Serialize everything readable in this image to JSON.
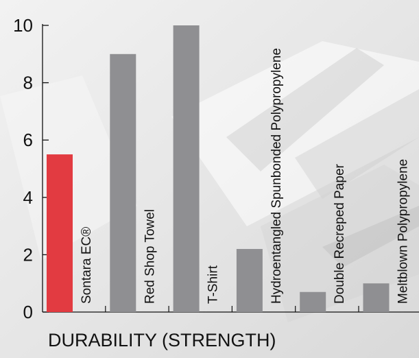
{
  "chart_data": {
    "type": "bar",
    "title": "",
    "xlabel": "DURABILITY (STRENGTH)",
    "ylabel": "",
    "ylim": [
      0,
      10
    ],
    "yticks": [
      0,
      2,
      4,
      6,
      8,
      10
    ],
    "categories": [
      "Sontara EC®",
      "Red Shop Towel",
      "T-Shirt",
      "Hydroentangled Spunbonded Polypropylene",
      "Double Recreped Paper",
      "Meltblown Polypropylene"
    ],
    "values": [
      5.5,
      9.0,
      10.0,
      2.2,
      0.7,
      1.0
    ],
    "bar_colors": [
      "#e23b41",
      "#8f8f92",
      "#8f8f92",
      "#8f8f92",
      "#8f8f92",
      "#8f8f92"
    ],
    "grid": false,
    "legend": "none"
  }
}
